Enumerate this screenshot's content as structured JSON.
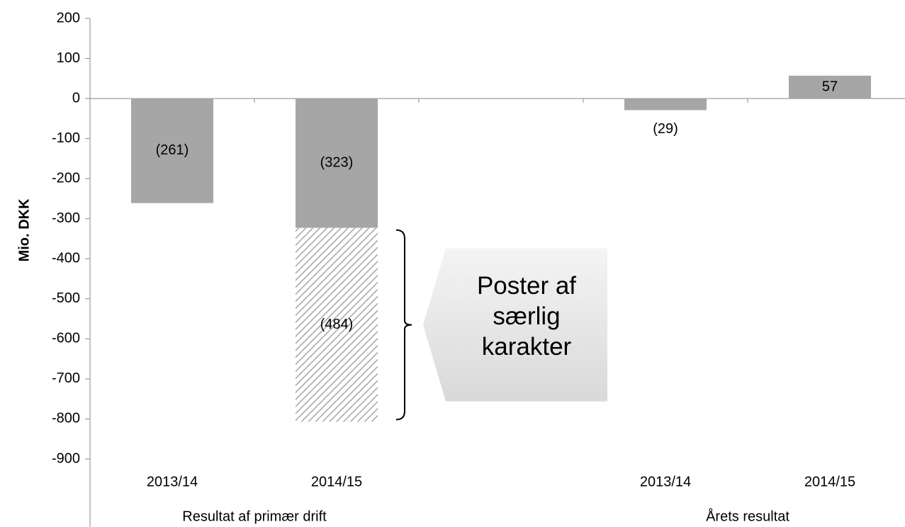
{
  "chart_data": {
    "type": "bar",
    "y_axis_label": "Mio. DKK",
    "categories": [
      "2013/14",
      "2014/15",
      null,
      "2013/14",
      "2014/15"
    ],
    "groups": [
      {
        "label": "Resultat af primær drift",
        "span": [
          0,
          1
        ]
      },
      {
        "label": "Årets resultat",
        "span": [
          3,
          4
        ]
      }
    ],
    "series": [
      {
        "name": "Resultat",
        "color": "#a6a6a6",
        "hatched": false,
        "values": [
          -261,
          -323,
          null,
          -29,
          57
        ],
        "value_labels": [
          "(261)",
          "(323)",
          null,
          "(29)",
          "57"
        ]
      },
      {
        "name": "Poster af særlig karakter",
        "color": "#a6a6a6",
        "hatched": true,
        "values": [
          null,
          -484,
          null,
          null,
          null
        ],
        "value_labels": [
          null,
          "(484)",
          null,
          null,
          null
        ]
      }
    ],
    "stacked": true,
    "annotation": {
      "lines": [
        "Poster af",
        "særlig",
        "karakter"
      ],
      "series": 1,
      "category": 1
    },
    "ylim": [
      -900,
      200
    ],
    "yticks": [
      -900,
      -800,
      -700,
      -600,
      -500,
      -400,
      -300,
      -200,
      -100,
      0,
      100,
      200
    ],
    "grid": false
  }
}
